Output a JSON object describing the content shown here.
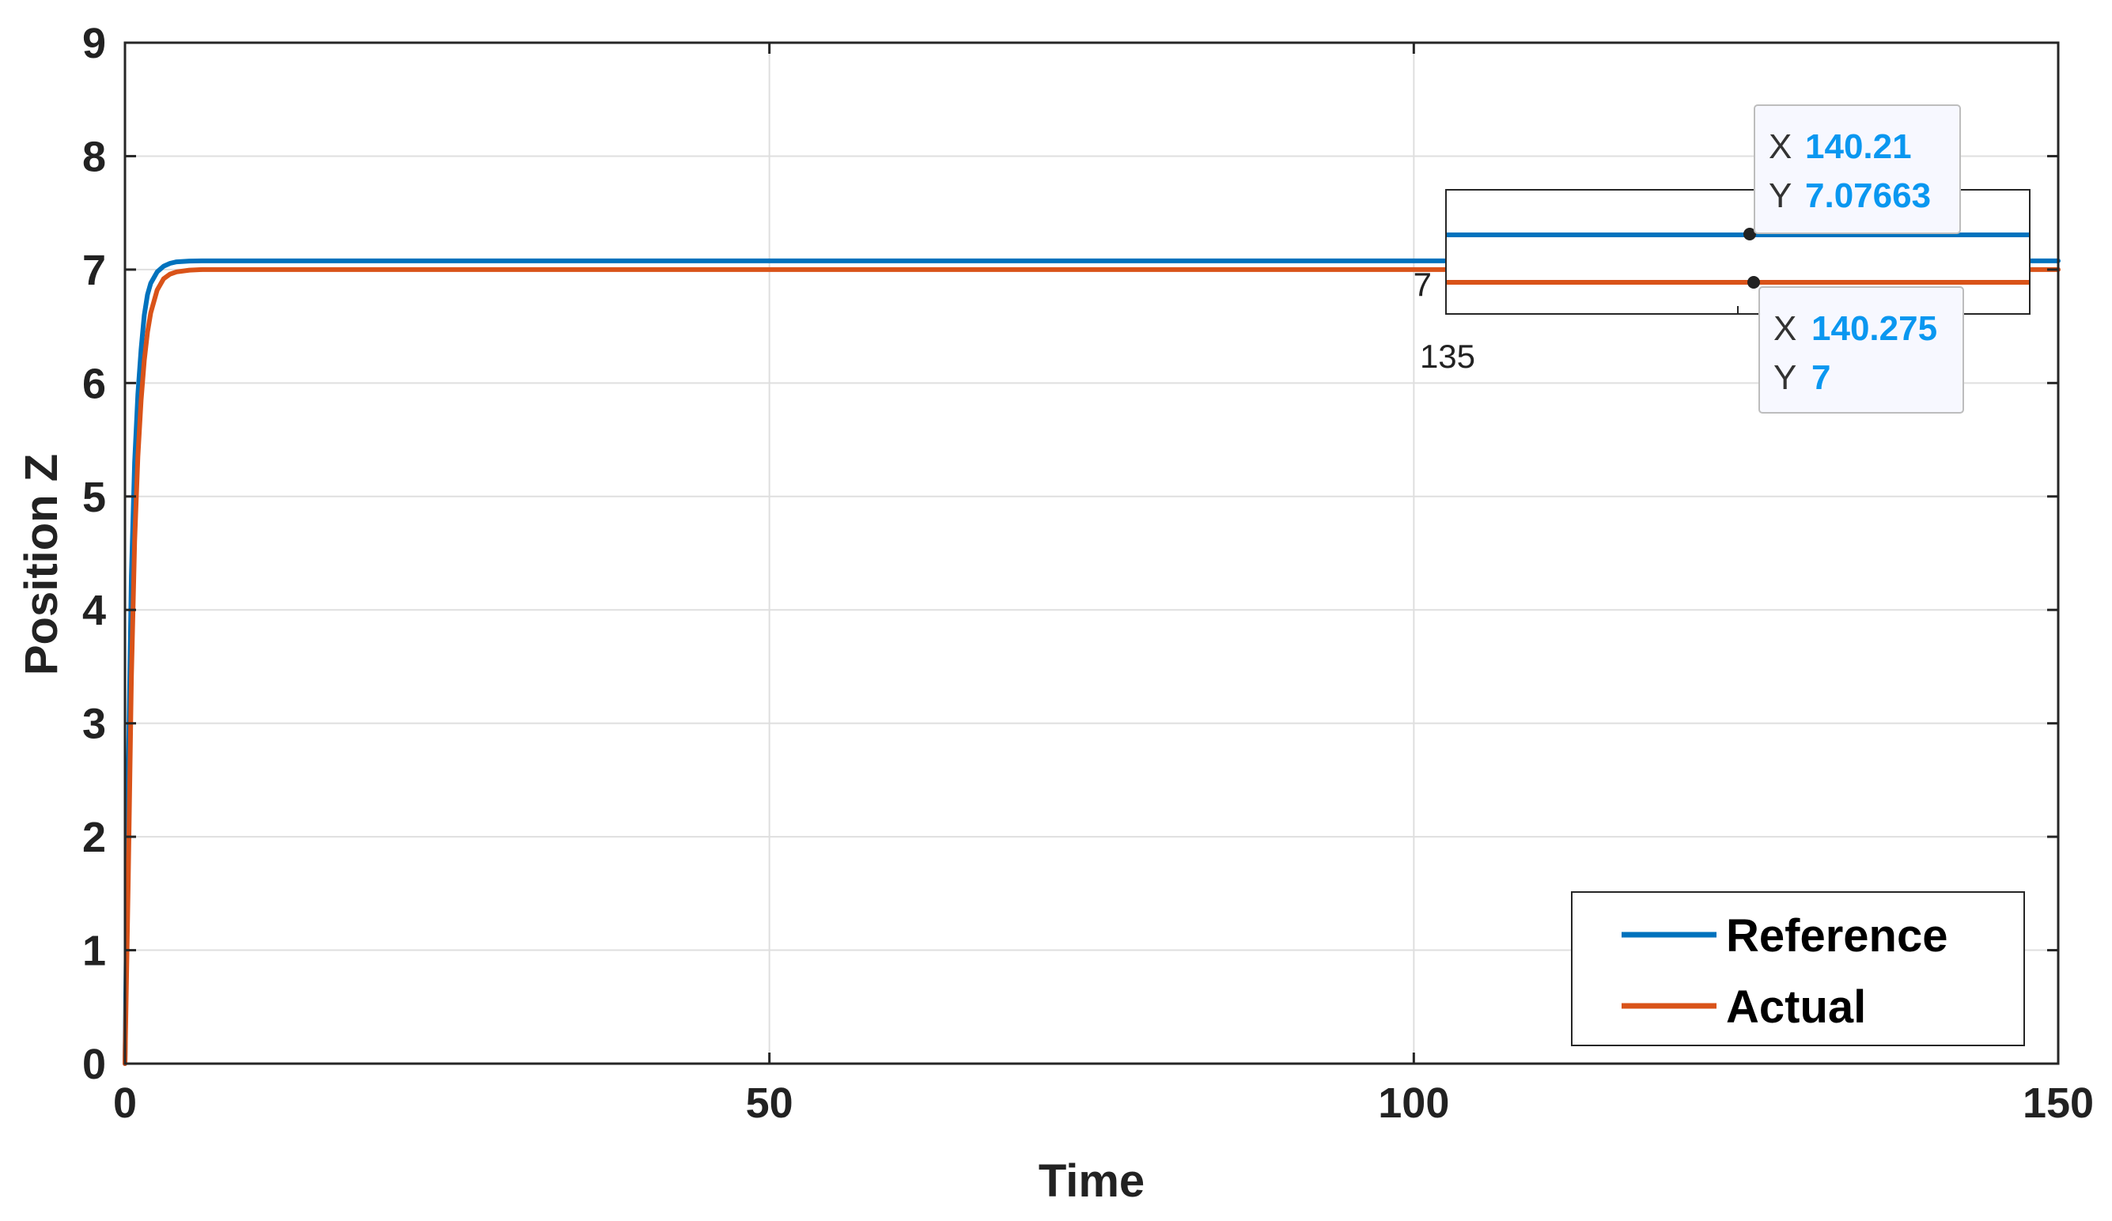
{
  "chart_data": {
    "type": "line",
    "title": "",
    "xlabel": "Time",
    "ylabel": "Position Z",
    "xlim": [
      0,
      150
    ],
    "ylim": [
      0,
      9
    ],
    "x_ticks": [
      "0",
      "50",
      "100",
      "150"
    ],
    "y_ticks": [
      "0",
      "1",
      "2",
      "3",
      "4",
      "5",
      "6",
      "7",
      "8",
      "9"
    ],
    "grid": true,
    "legend_position": "bottom-right",
    "series": [
      {
        "name": "Reference",
        "color": "#0072bd",
        "x": [
          0,
          0.25,
          0.5,
          0.75,
          1.0,
          1.25,
          1.5,
          1.75,
          2.0,
          2.5,
          3.0,
          3.5,
          4.0,
          5.0,
          6.0,
          8.0,
          10,
          20,
          50,
          100,
          140.21,
          150
        ],
        "y": [
          0,
          2.5,
          4.3,
          5.3,
          5.9,
          6.3,
          6.6,
          6.78,
          6.88,
          6.98,
          7.03,
          7.055,
          7.068,
          7.075,
          7.0766,
          7.0766,
          7.0766,
          7.0766,
          7.0766,
          7.0766,
          7.07663,
          7.0766
        ]
      },
      {
        "name": "Actual",
        "color": "#d95319",
        "x": [
          0,
          0.25,
          0.5,
          0.75,
          1.0,
          1.25,
          1.5,
          1.75,
          2.0,
          2.5,
          3.0,
          3.5,
          4.0,
          5.0,
          6.0,
          8.0,
          10,
          20,
          50,
          100,
          140.275,
          150
        ],
        "y": [
          0,
          1.6,
          3.4,
          4.6,
          5.35,
          5.85,
          6.2,
          6.45,
          6.62,
          6.82,
          6.92,
          6.96,
          6.98,
          6.995,
          7.0,
          7.0,
          7.0,
          7.0,
          7.0,
          7.0,
          7,
          7.0
        ]
      }
    ],
    "inset": {
      "x_tick": "135",
      "y_tick": "7"
    },
    "datatips": [
      {
        "series": "Reference",
        "x_key": "X",
        "x_value": "140.21",
        "y_key": "Y",
        "y_value": "7.07663"
      },
      {
        "series": "Actual",
        "x_key": "X",
        "x_value": "140.275",
        "y_key": "Y",
        "y_value": "7"
      }
    ]
  }
}
